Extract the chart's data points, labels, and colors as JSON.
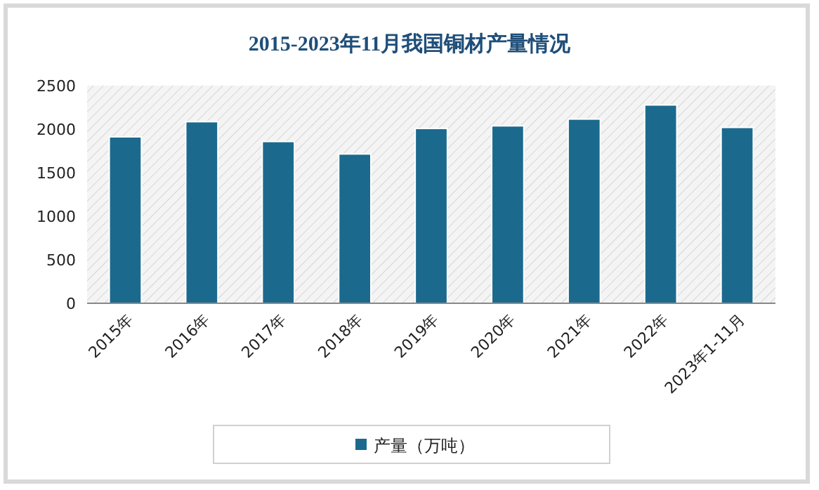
{
  "chart_data": {
    "type": "bar",
    "title": "2015-2023年11月我国铜材产量情况",
    "categories": [
      "2015年",
      "2016年",
      "2017年",
      "2018年",
      "2019年",
      "2020年",
      "2021年",
      "2022年",
      "2023年1-11月"
    ],
    "series": [
      {
        "name": "产量（万吨）",
        "color": "#1b6a8e",
        "values": [
          1912,
          2086,
          1858,
          1715,
          2008,
          2038,
          2116,
          2278,
          2020
        ]
      }
    ],
    "ylim": [
      0,
      2500
    ],
    "yticks": [
      0,
      500,
      1000,
      1500,
      2000,
      2500
    ],
    "grid": false,
    "legend": "bottom"
  }
}
